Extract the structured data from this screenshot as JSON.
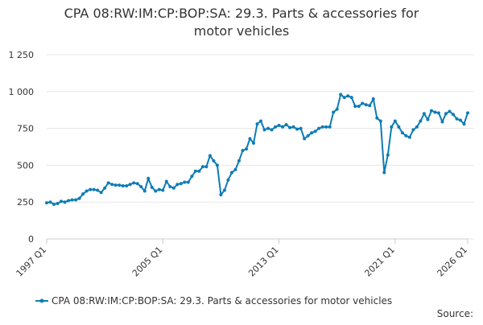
{
  "chart_data": {
    "type": "line",
    "title": "CPA 08:RW:IM:CP:BOP:SA: 29.3. Parts & accessories for motor vehicles",
    "categories": [
      "1997 Q1",
      null,
      null,
      null,
      null,
      null,
      null,
      null,
      null,
      null,
      null,
      null,
      null,
      null,
      null,
      null,
      null,
      null,
      null,
      null,
      null,
      null,
      null,
      null,
      null,
      null,
      null,
      null,
      null,
      null,
      null,
      null,
      "2005 Q1",
      null,
      null,
      null,
      null,
      null,
      null,
      null,
      null,
      null,
      null,
      null,
      null,
      null,
      null,
      null,
      null,
      null,
      null,
      null,
      null,
      null,
      null,
      null,
      null,
      null,
      null,
      null,
      null,
      null,
      null,
      null,
      "2013 Q1",
      null,
      null,
      null,
      null,
      null,
      null,
      null,
      null,
      null,
      null,
      null,
      null,
      null,
      null,
      null,
      null,
      null,
      null,
      null,
      null,
      null,
      null,
      null,
      null,
      null,
      null,
      null,
      null,
      null,
      null,
      null,
      "2021 Q1",
      null,
      null,
      null,
      null,
      null,
      null,
      null,
      null,
      null,
      null,
      null,
      null,
      null,
      null,
      null,
      null,
      null,
      null,
      null,
      "2026 Q1"
    ],
    "series": [
      {
        "name": "CPA 08:RW:IM:CP:BOP:SA: 29.3. Parts & accessories for motor vehicles",
        "color": "#0e7cb5",
        "values": [
          245,
          250,
          235,
          240,
          255,
          250,
          260,
          265,
          265,
          275,
          305,
          325,
          335,
          335,
          330,
          315,
          345,
          380,
          370,
          365,
          365,
          360,
          360,
          370,
          380,
          375,
          355,
          325,
          410,
          350,
          325,
          335,
          330,
          390,
          355,
          345,
          370,
          375,
          385,
          385,
          425,
          460,
          460,
          490,
          490,
          565,
          530,
          500,
          300,
          330,
          400,
          450,
          470,
          530,
          600,
          610,
          680,
          650,
          780,
          800,
          740,
          750,
          740,
          760,
          770,
          760,
          775,
          755,
          760,
          745,
          750,
          680,
          700,
          720,
          730,
          750,
          760,
          760,
          760,
          860,
          880,
          980,
          960,
          970,
          960,
          900,
          900,
          920,
          910,
          905,
          950,
          820,
          800,
          450,
          570,
          760,
          800,
          760,
          720,
          700,
          690,
          740,
          760,
          800,
          850,
          810,
          870,
          860,
          855,
          795,
          850,
          865,
          845,
          815,
          805,
          780,
          855
        ]
      }
    ],
    "ylim": [
      0,
      1250
    ],
    "yticks": [
      0,
      250,
      500,
      750,
      {
        "value": 1000,
        "label": "1 000"
      },
      {
        "value": 1250,
        "label": "1 250"
      }
    ],
    "grid": true,
    "legend": "bottom",
    "source": "Source:"
  }
}
